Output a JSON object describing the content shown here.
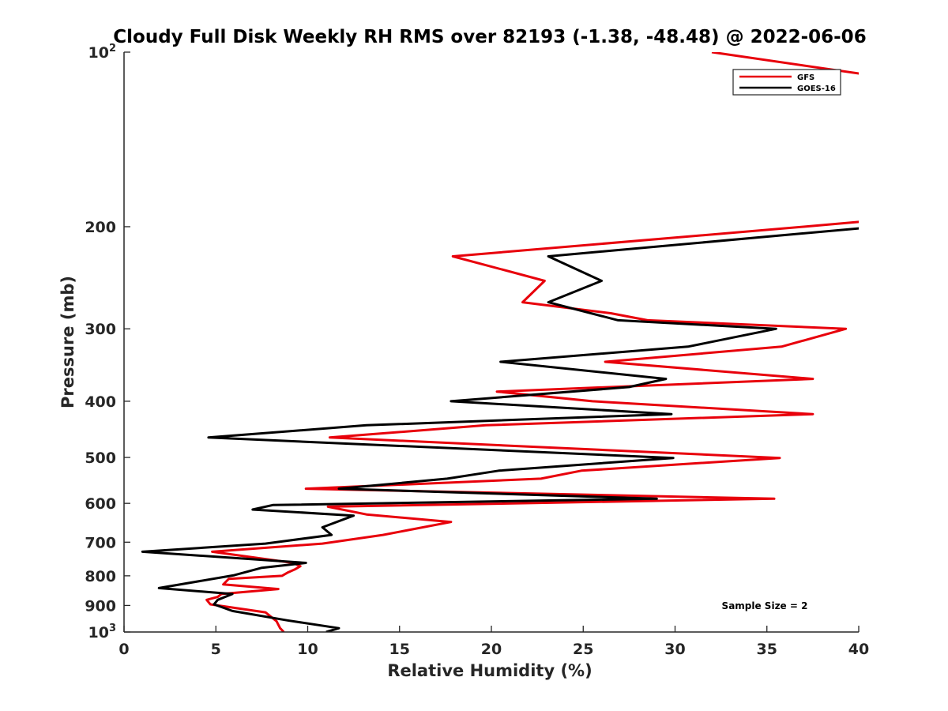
{
  "chart_data": {
    "type": "line",
    "title": "Cloudy Full Disk Weekly RH RMS over 82193 (-1.38, -48.48) @ 2022-06-06",
    "xlabel": "Relative Humidity (%)",
    "ylabel": "Pressure (mb)",
    "xlim": [
      0,
      40
    ],
    "ylim": [
      100,
      1000
    ],
    "y_scale": "log",
    "y_reversed": true,
    "x_ticks": [
      0,
      5,
      10,
      15,
      20,
      25,
      30,
      35,
      40
    ],
    "y_ticks": [
      {
        "value": 100,
        "base": "10",
        "exp": "2"
      },
      {
        "value": 200,
        "label": "200"
      },
      {
        "value": 300,
        "label": "300"
      },
      {
        "value": 400,
        "label": "400"
      },
      {
        "value": 500,
        "label": "500"
      },
      {
        "value": 600,
        "label": "600"
      },
      {
        "value": 700,
        "label": "700"
      },
      {
        "value": 800,
        "label": "800"
      },
      {
        "value": 900,
        "label": "900"
      },
      {
        "value": 1000,
        "base": "10",
        "exp": "3"
      }
    ],
    "legend_position": "top-right",
    "annotation": "Sample Size = 2",
    "series": [
      {
        "name": "GFS",
        "color": "#e8000b",
        "points": [
          [
            32,
            100
          ],
          [
            41,
            110
          ],
          [
            41,
            195
          ],
          [
            37,
            200
          ],
          [
            17.9,
            225
          ],
          [
            22.9,
            248
          ],
          [
            21.7,
            270
          ],
          [
            26.5,
            282
          ],
          [
            28.5,
            290
          ],
          [
            39.3,
            300
          ],
          [
            35.8,
            322
          ],
          [
            26.2,
            342
          ],
          [
            37.5,
            366
          ],
          [
            20.3,
            385
          ],
          [
            25.5,
            400
          ],
          [
            37.5,
            421
          ],
          [
            19.7,
            440
          ],
          [
            11.2,
            462
          ],
          [
            35.7,
            501
          ],
          [
            24.9,
            527
          ],
          [
            22.7,
            544
          ],
          [
            9.9,
            566
          ],
          [
            35.4,
            589
          ],
          [
            11.1,
            608
          ],
          [
            13.2,
            627
          ],
          [
            17.8,
            646
          ],
          [
            14.1,
            680
          ],
          [
            10.8,
            704
          ],
          [
            4.8,
            727
          ],
          [
            9.2,
            760
          ],
          [
            9.6,
            770
          ],
          [
            9.3,
            780
          ],
          [
            8.9,
            790
          ],
          [
            8.6,
            800
          ],
          [
            5.7,
            810
          ],
          [
            5.4,
            828
          ],
          [
            8.4,
            843
          ],
          [
            5.3,
            860
          ],
          [
            5.1,
            870
          ],
          [
            4.5,
            880
          ],
          [
            4.7,
            896
          ],
          [
            7.7,
            925
          ],
          [
            8.3,
            958
          ],
          [
            8.5,
            985
          ],
          [
            8.7,
            1000
          ]
        ]
      },
      {
        "name": "GOES-16",
        "color": "#000000",
        "points": [
          [
            41,
            200
          ],
          [
            23.1,
            225
          ],
          [
            26,
            248
          ],
          [
            23.1,
            270
          ],
          [
            26.9,
            290
          ],
          [
            35.5,
            300
          ],
          [
            30.7,
            322
          ],
          [
            20.5,
            342
          ],
          [
            29.5,
            366
          ],
          [
            27.5,
            378
          ],
          [
            17.8,
            400
          ],
          [
            29.8,
            421
          ],
          [
            13.2,
            440
          ],
          [
            4.6,
            462
          ],
          [
            29.9,
            501
          ],
          [
            20.4,
            527
          ],
          [
            17.6,
            544
          ],
          [
            11.7,
            566
          ],
          [
            29,
            589
          ],
          [
            8.1,
            604
          ],
          [
            7,
            615
          ],
          [
            12.5,
            630
          ],
          [
            10.8,
            660
          ],
          [
            11.3,
            680
          ],
          [
            7.7,
            704
          ],
          [
            1,
            727
          ],
          [
            9.9,
            760
          ],
          [
            7.5,
            775
          ],
          [
            6,
            798
          ],
          [
            1.9,
            840
          ],
          [
            5.9,
            860
          ],
          [
            5.1,
            880
          ],
          [
            4.9,
            896
          ],
          [
            5.9,
            920
          ],
          [
            8.9,
            955
          ],
          [
            11.7,
            985
          ],
          [
            11,
            1000
          ]
        ]
      }
    ]
  }
}
